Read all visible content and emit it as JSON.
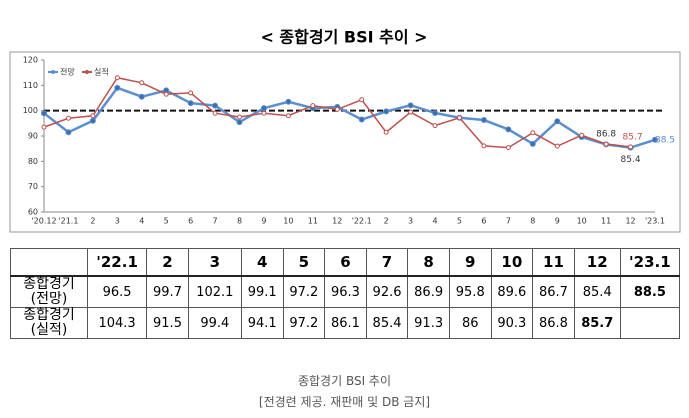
{
  "chart_data": {
    "type": "line",
    "title": "< 종합경기 BSI 추이 >",
    "categories": [
      "'20.12",
      "'21.1",
      "2",
      "3",
      "4",
      "5",
      "6",
      "7",
      "8",
      "9",
      "10",
      "11",
      "12",
      "'22.1",
      "2",
      "3",
      "4",
      "5",
      "6",
      "7",
      "8",
      "9",
      "10",
      "11",
      "12",
      "'23.1"
    ],
    "series": [
      {
        "name": "전망",
        "color": "#5b8fd0",
        "values": [
          99,
          91.5,
          96,
          109,
          105.5,
          108,
          103,
          102,
          95.5,
          101,
          103.5,
          101,
          101.5,
          96.5,
          99.7,
          102.1,
          99.1,
          97.2,
          96.3,
          92.6,
          86.9,
          95.8,
          89.6,
          86.7,
          85.4,
          88.5
        ]
      },
      {
        "name": "실적",
        "color": "#c0504d",
        "values": [
          93.5,
          97,
          98,
          113,
          111,
          106.5,
          107,
          99,
          97.5,
          99,
          98,
          102,
          100.5,
          104.3,
          91.5,
          99.4,
          94.1,
          97.2,
          86.1,
          85.4,
          91.3,
          86.0,
          90.3,
          86.8,
          85.7,
          null
        ]
      }
    ],
    "ylim": [
      60,
      120
    ],
    "yticks": [
      60,
      70,
      80,
      90,
      100,
      110,
      120
    ],
    "reference_line": 100
  },
  "table": {
    "row_labels": [
      [
        "종합경기",
        "(전망)"
      ],
      [
        "종합경기",
        "(실적)"
      ]
    ]
  },
  "caption": {
    "title": "종합경기 BSI 추이",
    "source": "[전경련 제공. 재판매 및 DB 금지]"
  }
}
